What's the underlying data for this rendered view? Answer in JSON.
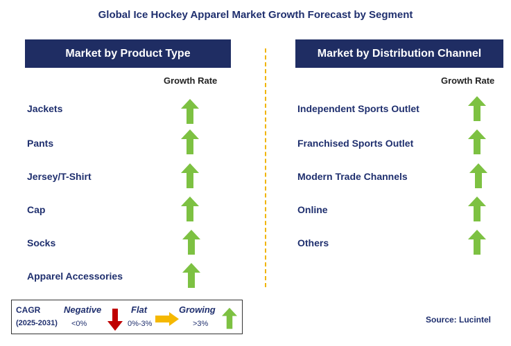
{
  "title": "Global Ice Hockey Apparel Market Growth Forecast by Segment",
  "left_panel": {
    "header": "Market by Product Type",
    "growth_label": "Growth Rate",
    "rows": [
      {
        "label": "Jackets",
        "trend": "growing"
      },
      {
        "label": "Pants",
        "trend": "growing"
      },
      {
        "label": "Jersey/T-Shirt",
        "trend": "growing"
      },
      {
        "label": "Cap",
        "trend": "growing"
      },
      {
        "label": "Socks",
        "trend": "growing"
      },
      {
        "label": "Apparel Accessories",
        "trend": "growing"
      }
    ]
  },
  "right_panel": {
    "header": "Market by Distribution Channel",
    "growth_label": "Growth Rate",
    "rows": [
      {
        "label": "Independent Sports Outlet",
        "trend": "growing"
      },
      {
        "label": "Franchised Sports Outlet",
        "trend": "growing"
      },
      {
        "label": "Modern Trade Channels",
        "trend": "growing"
      },
      {
        "label": "Online",
        "trend": "growing"
      },
      {
        "label": "Others",
        "trend": "growing"
      }
    ]
  },
  "legend": {
    "cagr_label": "CAGR",
    "period": "(2025-2031)",
    "negative": {
      "label": "Negative",
      "range": "<0%",
      "icon": "down-arrow-icon",
      "color": "#c00000"
    },
    "flat": {
      "label": "Flat",
      "range": "0%-3%",
      "icon": "right-arrow-icon",
      "color": "#f5b800"
    },
    "growing": {
      "label": "Growing",
      "range": ">3%",
      "icon": "up-arrow-icon",
      "color": "#7dc142"
    }
  },
  "source": "Source: Lucintel",
  "colors": {
    "header_bg": "#1f2d63",
    "text": "#1f2f6e",
    "divider": "#f0b400",
    "growing": "#7dc142"
  }
}
